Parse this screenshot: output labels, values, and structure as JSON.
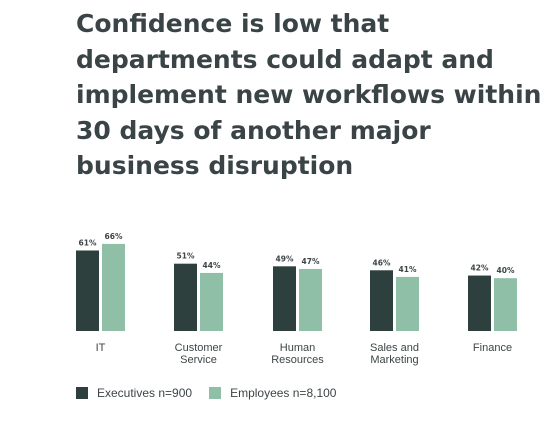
{
  "chart_data": {
    "type": "bar",
    "title": "Confidence is low that departments could adapt and implement new workflows within 30 days of another major business disruption",
    "categories": [
      "IT",
      "Customer Service",
      "Human Resources",
      "Sales and Marketing",
      "Finance"
    ],
    "category_lines": [
      [
        "IT"
      ],
      [
        "Customer",
        "Service"
      ],
      [
        "Human",
        "Resources"
      ],
      [
        "Sales and",
        "Marketing"
      ],
      [
        "Finance"
      ]
    ],
    "series": [
      {
        "name": "Executives n=900",
        "values": [
          61,
          51,
          49,
          46,
          42
        ],
        "labels": [
          "61%",
          "51%",
          "49%",
          "46%",
          "42%"
        ],
        "color": "#2e403d"
      },
      {
        "name": "Employees n=8,100",
        "values": [
          66,
          44,
          47,
          41,
          40
        ],
        "labels": [
          "66%",
          "44%",
          "47%",
          "41%",
          "40%"
        ],
        "color": "#8fbfa7"
      }
    ],
    "ylim": [
      0,
      100
    ],
    "grid": false,
    "legend_position": "bottom-left"
  }
}
